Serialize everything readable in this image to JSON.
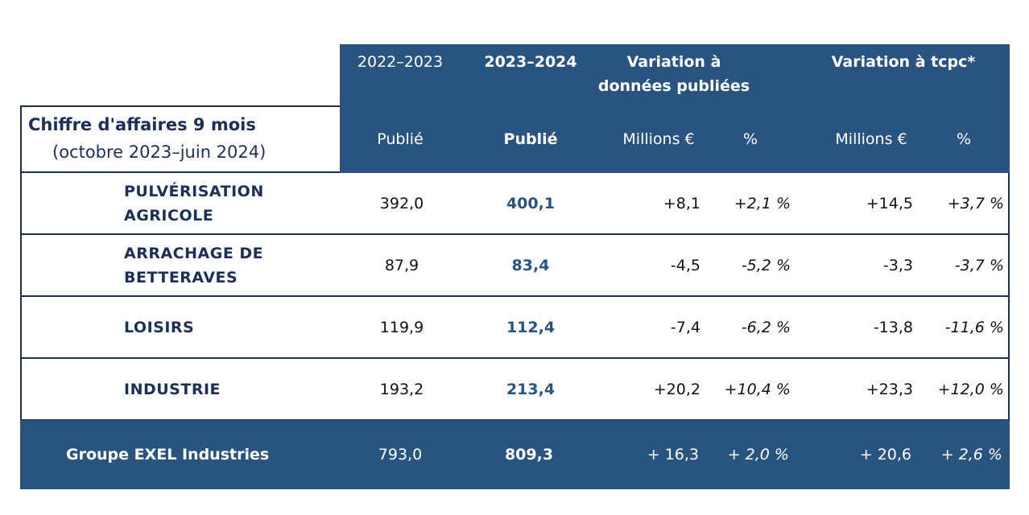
{
  "header": {
    "col_2022": "2022–2023",
    "col_2023": "2023–2024",
    "variation_published_line1": "Variation à",
    "variation_published_line2": "données publiées",
    "variation_tcpc": "Variation à tcpc*",
    "sub_publie_2022": "Publié",
    "sub_publie_2023": "Publié",
    "sub_millions_1": "Millions €",
    "sub_pct_1": "%",
    "sub_millions_2": "Millions €",
    "sub_pct_2": "%"
  },
  "title": {
    "main": "Chiffre d'affaires 9 mois",
    "period": "(octobre 2023–juin 2024)"
  },
  "rows": [
    {
      "segment_line1": "PULVÉRISATION",
      "segment_line2": "AGRICOLE",
      "v2022": "392,0",
      "v2023": "400,1",
      "var_m": "+8,1",
      "var_pct": "+2,1 %",
      "tcpc_m": "+14,5",
      "tcpc_pct": "+3,7 %"
    },
    {
      "segment_line1": "ARRACHAGE DE",
      "segment_line2": "BETTERAVES",
      "v2022": "87,9",
      "v2023": "83,4",
      "var_m": "-4,5",
      "var_pct": "-5,2 %",
      "tcpc_m": "-3,3",
      "tcpc_pct": "-3,7 %"
    },
    {
      "segment_line1": "LOISIRS",
      "segment_line2": "",
      "v2022": "119,9",
      "v2023": "112,4",
      "var_m": "-7,4",
      "var_pct": "-6,2 %",
      "tcpc_m": "-13,8",
      "tcpc_pct": "-11,6 %"
    },
    {
      "segment_line1": "INDUSTRIE",
      "segment_line2": "",
      "v2022": "193,2",
      "v2023": "213,4",
      "var_m": "+20,2",
      "var_pct": "+10,4 %",
      "tcpc_m": "+23,3",
      "tcpc_pct": "+12,0 %"
    }
  ],
  "total": {
    "label": "Groupe EXEL Industries",
    "v2022": "793,0",
    "v2023": "809,3",
    "var_m": "+ 16,3",
    "var_pct": "+ 2,0 %",
    "tcpc_m": "+ 20,6",
    "tcpc_pct": "+ 2,6 %"
  },
  "colors": {
    "header_bg": "#2a5480",
    "navy_text": "#1c2f57",
    "value_2023": "#2a5480"
  }
}
